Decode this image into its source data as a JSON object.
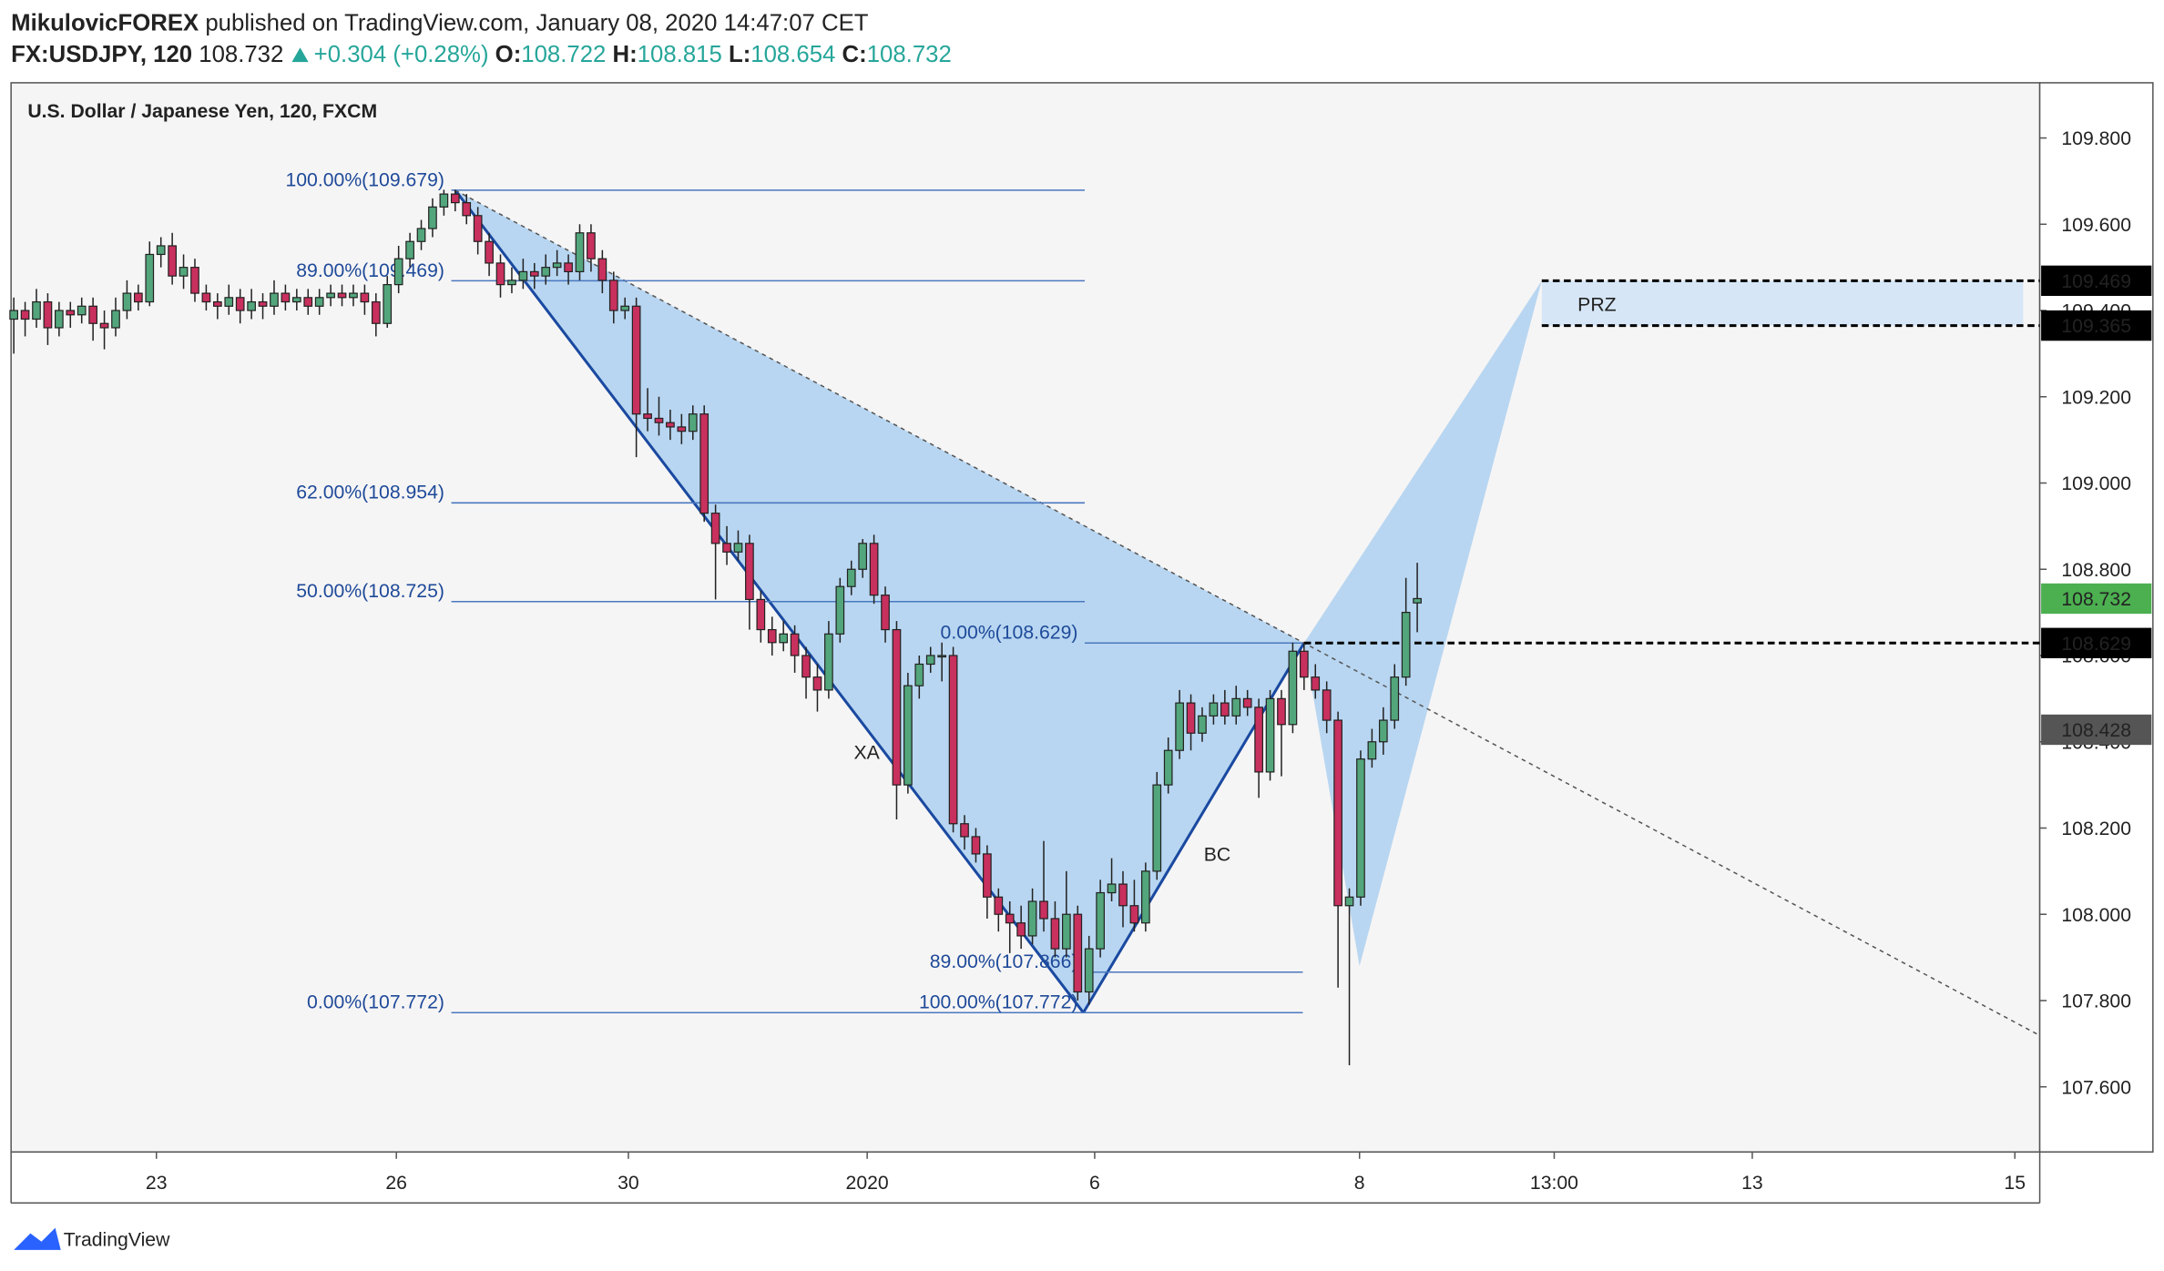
{
  "header": {
    "author": "MikulovicFOREX",
    "published": "published on TradingView.com, January 08, 2020 14:47:07 CET",
    "symbol": "FX:USDJPY, 120",
    "change": {
      "value": 0.304,
      "label": "+0.304"
    },
    "change_pct": {
      "value": 0.28,
      "label": "(+0.28%)"
    },
    "ohlc_labels": [
      "O:",
      "H:",
      "L:",
      "C:"
    ]
  },
  "footer": {
    "brand": "TradingView"
  },
  "chart_data": {
    "type": "candlestick",
    "title": "U.S. Dollar / Japanese Yen, 120, FXCM",
    "up_color": "#53a67c",
    "down_color": "#c8305e",
    "xlim": [
      -0.24,
      179.0
    ],
    "ylim": [
      107.449,
      109.928
    ],
    "xticks": [
      {
        "value": 12.6,
        "label": "23"
      },
      {
        "value": 33.8,
        "label": "26"
      },
      {
        "value": 54.3,
        "label": "30"
      },
      {
        "value": 75.4,
        "label": "2020"
      },
      {
        "value": 95.5,
        "label": "6"
      },
      {
        "value": 118.9,
        "label": "8"
      },
      {
        "value": 136.1,
        "label": "13:00"
      },
      {
        "value": 153.6,
        "label": "13"
      },
      {
        "value": 176.8,
        "label": "15"
      }
    ],
    "yticks": [
      {
        "value": 107.6,
        "label": "107.600"
      },
      {
        "value": 107.8,
        "label": "107.800"
      },
      {
        "value": 108.0,
        "label": "108.000"
      },
      {
        "value": 108.2,
        "label": "108.200"
      },
      {
        "value": 108.4,
        "label": "108.400"
      },
      {
        "value": 108.6,
        "label": "108.600"
      },
      {
        "value": 108.8,
        "label": "108.800"
      },
      {
        "value": 109.0,
        "label": "109.000"
      },
      {
        "value": 109.2,
        "label": "109.200"
      },
      {
        "value": 109.4,
        "label": "109.400"
      },
      {
        "value": 109.6,
        "label": "109.600"
      },
      {
        "value": 109.8,
        "label": "109.800"
      }
    ],
    "ohlc": [
      [
        109.38,
        109.43,
        109.3,
        109.4
      ],
      [
        109.4,
        109.42,
        109.34,
        109.38
      ],
      [
        109.38,
        109.45,
        109.36,
        109.42
      ],
      [
        109.42,
        109.44,
        109.32,
        109.36
      ],
      [
        109.36,
        109.42,
        109.34,
        109.4
      ],
      [
        109.4,
        109.42,
        109.36,
        109.39
      ],
      [
        109.39,
        109.43,
        109.37,
        109.41
      ],
      [
        109.41,
        109.43,
        109.33,
        109.37
      ],
      [
        109.37,
        109.4,
        109.31,
        109.36
      ],
      [
        109.36,
        109.43,
        109.34,
        109.4
      ],
      [
        109.4,
        109.47,
        109.38,
        109.44
      ],
      [
        109.44,
        109.46,
        109.4,
        109.42
      ],
      [
        109.42,
        109.56,
        109.41,
        109.53
      ],
      [
        109.53,
        109.57,
        109.5,
        109.55
      ],
      [
        109.55,
        109.58,
        109.46,
        109.48
      ],
      [
        109.48,
        109.53,
        109.45,
        109.5
      ],
      [
        109.5,
        109.52,
        109.42,
        109.44
      ],
      [
        109.44,
        109.46,
        109.4,
        109.42
      ],
      [
        109.42,
        109.44,
        109.38,
        109.41
      ],
      [
        109.41,
        109.46,
        109.39,
        109.43
      ],
      [
        109.43,
        109.45,
        109.37,
        109.4
      ],
      [
        109.4,
        109.45,
        109.38,
        109.42
      ],
      [
        109.42,
        109.44,
        109.38,
        109.41
      ],
      [
        109.41,
        109.47,
        109.39,
        109.44
      ],
      [
        109.44,
        109.46,
        109.4,
        109.42
      ],
      [
        109.42,
        109.45,
        109.4,
        109.43
      ],
      [
        109.43,
        109.45,
        109.39,
        109.41
      ],
      [
        109.41,
        109.45,
        109.39,
        109.43
      ],
      [
        109.43,
        109.46,
        109.41,
        109.44
      ],
      [
        109.44,
        109.46,
        109.41,
        109.43
      ],
      [
        109.43,
        109.46,
        109.41,
        109.44
      ],
      [
        109.44,
        109.46,
        109.39,
        109.42
      ],
      [
        109.42,
        109.44,
        109.34,
        109.37
      ],
      [
        109.37,
        109.48,
        109.36,
        109.46
      ],
      [
        109.46,
        109.55,
        109.44,
        109.52
      ],
      [
        109.52,
        109.58,
        109.5,
        109.56
      ],
      [
        109.56,
        109.61,
        109.54,
        109.59
      ],
      [
        109.59,
        109.66,
        109.57,
        109.64
      ],
      [
        109.64,
        109.68,
        109.62,
        109.67
      ],
      [
        109.67,
        109.68,
        109.63,
        109.65
      ],
      [
        109.65,
        109.67,
        109.6,
        109.62
      ],
      [
        109.62,
        109.64,
        109.53,
        109.56
      ],
      [
        109.56,
        109.58,
        109.48,
        109.51
      ],
      [
        109.51,
        109.53,
        109.43,
        109.46
      ],
      [
        109.46,
        109.5,
        109.44,
        109.47
      ],
      [
        109.47,
        109.52,
        109.45,
        109.49
      ],
      [
        109.49,
        109.51,
        109.45,
        109.48
      ],
      [
        109.48,
        109.53,
        109.46,
        109.5
      ],
      [
        109.5,
        109.54,
        109.48,
        109.51
      ],
      [
        109.51,
        109.53,
        109.46,
        109.49
      ],
      [
        109.49,
        109.6,
        109.47,
        109.58
      ],
      [
        109.58,
        109.6,
        109.49,
        109.52
      ],
      [
        109.52,
        109.54,
        109.44,
        109.47
      ],
      [
        109.47,
        109.49,
        109.37,
        109.4
      ],
      [
        109.4,
        109.43,
        109.38,
        109.41
      ],
      [
        109.41,
        109.43,
        109.06,
        109.16
      ],
      [
        109.16,
        109.22,
        109.12,
        109.15
      ],
      [
        109.15,
        109.2,
        109.11,
        109.14
      ],
      [
        109.14,
        109.17,
        109.1,
        109.13
      ],
      [
        109.13,
        109.16,
        109.09,
        109.12
      ],
      [
        109.12,
        109.18,
        109.1,
        109.16
      ],
      [
        109.16,
        109.18,
        108.91,
        108.93
      ],
      [
        108.93,
        108.95,
        108.73,
        108.86
      ],
      [
        108.86,
        108.9,
        108.81,
        108.84
      ],
      [
        108.84,
        108.89,
        108.82,
        108.86
      ],
      [
        108.86,
        108.88,
        108.66,
        108.73
      ],
      [
        108.73,
        108.75,
        108.63,
        108.66
      ],
      [
        108.66,
        108.69,
        108.6,
        108.63
      ],
      [
        108.63,
        108.68,
        108.61,
        108.65
      ],
      [
        108.65,
        108.67,
        108.56,
        108.6
      ],
      [
        108.6,
        108.62,
        108.5,
        108.55
      ],
      [
        108.55,
        108.58,
        108.47,
        108.52
      ],
      [
        108.52,
        108.68,
        108.5,
        108.65
      ],
      [
        108.65,
        108.78,
        108.63,
        108.76
      ],
      [
        108.76,
        108.82,
        108.74,
        108.8
      ],
      [
        108.8,
        108.87,
        108.78,
        108.86
      ],
      [
        108.86,
        108.88,
        108.72,
        108.74
      ],
      [
        108.74,
        108.76,
        108.63,
        108.66
      ],
      [
        108.66,
        108.68,
        108.22,
        108.3
      ],
      [
        108.3,
        108.56,
        108.28,
        108.53
      ],
      [
        108.53,
        108.6,
        108.5,
        108.58
      ],
      [
        108.58,
        108.62,
        108.56,
        108.6
      ],
      [
        108.6,
        108.63,
        108.54,
        108.6
      ],
      [
        108.6,
        108.62,
        108.19,
        108.21
      ],
      [
        108.21,
        108.23,
        108.15,
        108.18
      ],
      [
        108.18,
        108.2,
        108.12,
        108.14
      ],
      [
        108.14,
        108.16,
        107.99,
        108.04
      ],
      [
        108.04,
        108.06,
        107.96,
        108.0
      ],
      [
        108.0,
        108.03,
        107.91,
        107.98
      ],
      [
        107.98,
        108.02,
        107.92,
        107.95
      ],
      [
        107.95,
        108.06,
        107.93,
        108.03
      ],
      [
        108.03,
        108.17,
        107.96,
        107.99
      ],
      [
        107.99,
        108.03,
        107.9,
        107.92
      ],
      [
        107.92,
        108.1,
        107.9,
        108.0
      ],
      [
        108.0,
        108.02,
        107.8,
        107.82
      ],
      [
        107.82,
        107.95,
        107.79,
        107.92
      ],
      [
        107.92,
        108.08,
        107.9,
        108.05
      ],
      [
        108.05,
        108.13,
        108.03,
        108.07
      ],
      [
        108.07,
        108.1,
        107.97,
        108.02
      ],
      [
        108.02,
        108.08,
        107.96,
        107.98
      ],
      [
        107.98,
        108.12,
        107.96,
        108.1
      ],
      [
        108.1,
        108.33,
        108.08,
        108.3
      ],
      [
        108.3,
        108.41,
        108.28,
        108.38
      ],
      [
        108.38,
        108.52,
        108.36,
        108.49
      ],
      [
        108.49,
        108.51,
        108.38,
        108.42
      ],
      [
        108.42,
        108.48,
        108.4,
        108.46
      ],
      [
        108.46,
        108.51,
        108.44,
        108.49
      ],
      [
        108.49,
        108.52,
        108.44,
        108.46
      ],
      [
        108.46,
        108.53,
        108.44,
        108.5
      ],
      [
        108.5,
        108.52,
        108.46,
        108.48
      ],
      [
        108.48,
        108.5,
        108.27,
        108.33
      ],
      [
        108.33,
        108.52,
        108.31,
        108.5
      ],
      [
        108.5,
        108.52,
        108.32,
        108.44
      ],
      [
        108.44,
        108.63,
        108.42,
        108.61
      ],
      [
        108.61,
        108.63,
        108.52,
        108.55
      ],
      [
        108.55,
        108.58,
        108.5,
        108.52
      ],
      [
        108.52,
        108.54,
        108.42,
        108.45
      ],
      [
        108.45,
        108.47,
        107.83,
        108.02
      ],
      [
        108.02,
        108.06,
        107.65,
        108.04
      ],
      [
        108.04,
        108.38,
        108.02,
        108.36
      ],
      [
        108.36,
        108.43,
        108.34,
        108.4
      ],
      [
        108.4,
        108.48,
        108.37,
        108.45
      ],
      [
        108.45,
        108.58,
        108.43,
        108.55
      ],
      [
        108.55,
        108.78,
        108.53,
        108.7
      ],
      [
        108.722,
        108.815,
        108.654,
        108.732
      ]
    ],
    "fib_xa": [
      {
        "label": "100.00%(109.679)",
        "price": 109.679
      },
      {
        "label": "89.00%(109.469)",
        "price": 109.469
      },
      {
        "label": "62.00%(108.954)",
        "price": 108.954
      },
      {
        "label": "50.00%(108.725)",
        "price": 108.725
      },
      {
        "label": "0.00%(107.772)",
        "price": 107.772
      }
    ],
    "fib_ab": [
      {
        "label": "0.00%(108.629)",
        "price": 108.629
      },
      {
        "label": "89.00%(107.866)",
        "price": 107.866
      },
      {
        "label": "100.00%(107.772)",
        "price": 107.772
      }
    ],
    "pattern_points": [
      {
        "x": 39.0,
        "price": 109.679
      },
      {
        "x": 94.5,
        "price": 107.772
      },
      {
        "x": 114.0,
        "price": 108.629
      },
      {
        "x": 118.9,
        "price": 107.88
      },
      {
        "x": 135.0,
        "price": 109.469
      }
    ],
    "pattern_labels": [
      "XA",
      "BC"
    ],
    "prz": {
      "label": "PRZ",
      "top": 109.469,
      "bottom": 109.365
    },
    "price_tags": [
      {
        "value": 109.469,
        "color": "#000000"
      },
      {
        "value": 109.365,
        "color": "#000000"
      },
      {
        "value": 108.732,
        "color": "#4caf50"
      },
      {
        "value": 108.629,
        "color": "#000000"
      },
      {
        "value": 108.428,
        "color": "#555555"
      }
    ]
  }
}
